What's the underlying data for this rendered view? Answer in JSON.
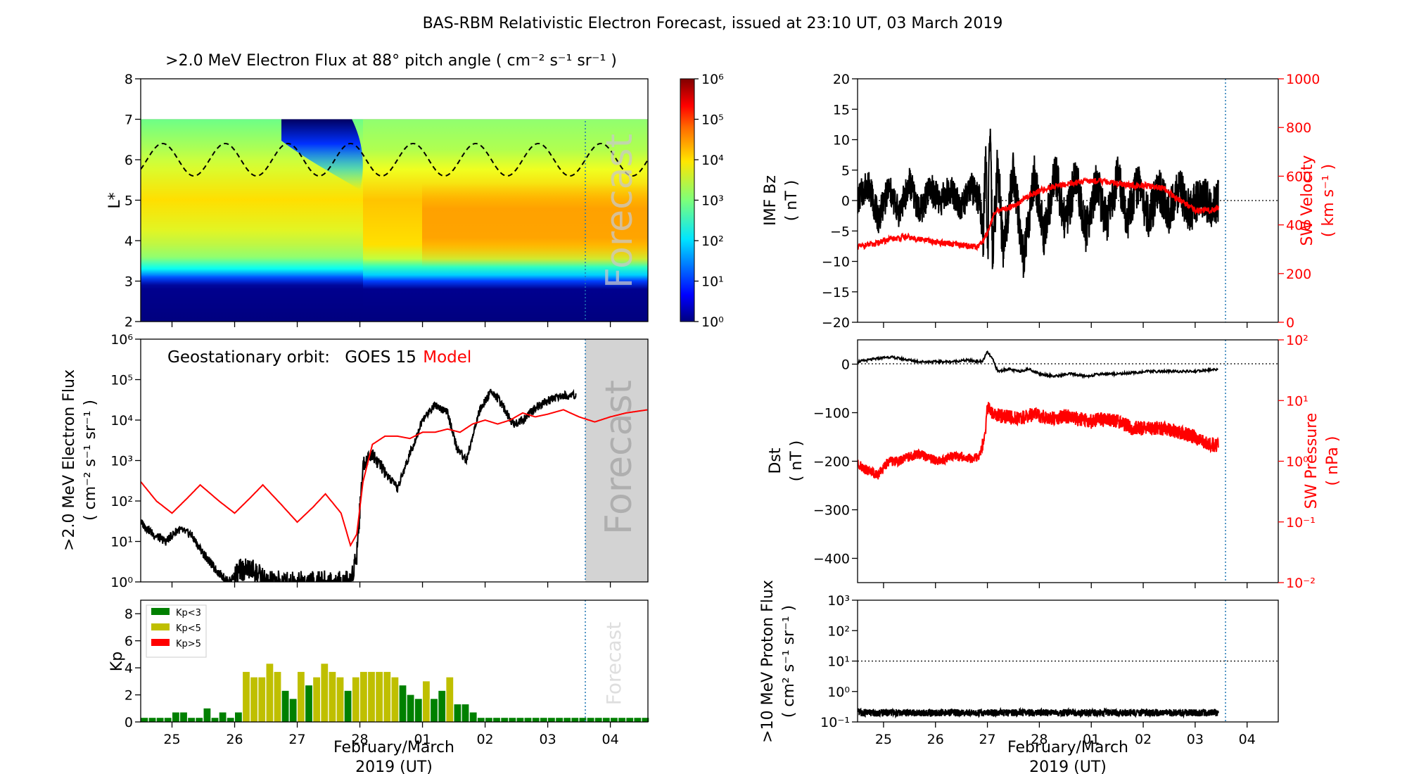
{
  "title": "BAS-RBM Relativistic Electron Forecast, issued at 23:10 UT, 03 March 2019",
  "chart_data": [
    {
      "id": "flux_spectrogram",
      "type": "heatmap",
      "title": ">2.0 MeV Electron Flux at 88° pitch angle ( cm⁻² s⁻¹ sr⁻¹ )",
      "ylabel": "L*",
      "ylim": [
        2,
        8
      ],
      "yticks": [
        "2",
        "3",
        "4",
        "5",
        "6",
        "7",
        "8"
      ],
      "xlim": [
        24.5,
        32.6
      ],
      "colorbar": {
        "scale": "log",
        "range": [
          1,
          1000000
        ],
        "ticks": [
          "10⁰",
          "10¹",
          "10²",
          "10³",
          "10⁴",
          "10⁵",
          "10⁶"
        ]
      },
      "overlay_text": "Forecast",
      "mlt_markers": [
        "M",
        "N",
        "M",
        "N",
        "M",
        "N",
        "M",
        "N",
        "M",
        "N",
        "M",
        "N",
        "M",
        "N"
      ],
      "geo_orbit_lstar": {
        "mean": 6.0,
        "amplitude": 0.4,
        "period_days": 1
      },
      "inner_belt_edge_lstar": 3.2,
      "outer_belt_core_lstar": [
        3.8,
        5.8
      ],
      "colors": {
        "deep": "#00007f",
        "high": "#ff8000",
        "shade": "#d3d3d3"
      }
    },
    {
      "id": "geo_flux",
      "type": "line",
      "ylabel": ">2.0 MeV Electron Flux ( cm⁻² s⁻¹ sr⁻¹ )",
      "yscale": "log",
      "ylim": [
        1,
        1000000
      ],
      "yticks": [
        "10⁰",
        "10¹",
        "10²",
        "10³",
        "10⁴",
        "10⁵",
        "10⁶"
      ],
      "legend_prefix": "Geostationary orbit:",
      "overlay_text": "Forecast",
      "series": [
        {
          "name": "GOES 15",
          "color": "#000000",
          "x": [
            24.5,
            24.7,
            24.9,
            25.1,
            25.3,
            25.5,
            25.7,
            25.9,
            26.1,
            26.3,
            26.5,
            26.7,
            26.9,
            27.1,
            27.3,
            27.5,
            27.7,
            27.85,
            27.95,
            28.05,
            28.2,
            28.4,
            28.6,
            28.8,
            29.0,
            29.2,
            29.4,
            29.55,
            29.7,
            29.9,
            30.1,
            30.3,
            30.45,
            30.6,
            30.8,
            31.0,
            31.2,
            31.4,
            31.45
          ],
          "y": [
            30,
            15,
            10,
            20,
            15,
            5,
            2,
            1,
            2,
            2,
            1,
            1,
            1,
            1,
            1,
            1,
            1,
            1,
            5,
            800,
            1500,
            500,
            200,
            1500,
            10000,
            25000,
            15000,
            2000,
            1000,
            15000,
            55000,
            20000,
            8000,
            10000,
            20000,
            30000,
            40000,
            40000,
            45000
          ]
        },
        {
          "name": "Model",
          "color": "#ff0000",
          "x": [
            24.5,
            24.75,
            25.0,
            25.25,
            25.45,
            25.75,
            26.0,
            26.25,
            26.45,
            26.75,
            27.0,
            27.25,
            27.45,
            27.7,
            27.85,
            27.95,
            28.05,
            28.2,
            28.4,
            28.6,
            28.8,
            29.0,
            29.2,
            29.4,
            29.6,
            29.8,
            30.0,
            30.2,
            30.4,
            30.6,
            30.8,
            31.0,
            31.25,
            31.5,
            31.75,
            32.0,
            32.25,
            32.6
          ],
          "y": [
            300,
            100,
            50,
            120,
            250,
            100,
            50,
            120,
            250,
            80,
            30,
            70,
            150,
            50,
            8,
            15,
            300,
            2500,
            4000,
            4000,
            3500,
            5000,
            5000,
            6000,
            5000,
            8000,
            10000,
            8000,
            10000,
            15000,
            12000,
            14000,
            18000,
            12000,
            9000,
            12000,
            15000,
            18000
          ]
        }
      ]
    },
    {
      "id": "kp",
      "type": "bar",
      "ylabel": "Kp",
      "ylim": [
        0,
        9
      ],
      "yticks": [
        "0",
        "2",
        "4",
        "6",
        "8"
      ],
      "xlabel": "February/March\n2019 (UT)",
      "xlim": [
        24.5,
        32.6
      ],
      "xtick_positions": [
        25,
        26,
        27,
        28,
        29,
        30,
        31,
        32
      ],
      "xticks": [
        "25",
        "26",
        "27",
        "28",
        "01",
        "02",
        "03",
        "04"
      ],
      "overlay_text": "Forecast",
      "legend": [
        {
          "label": "Kp<3",
          "color": "#008000"
        },
        {
          "label": "Kp<5",
          "color": "#bfbf00"
        },
        {
          "label": "Kp>5",
          "color": "#ff0000"
        }
      ],
      "bar_width_days": 0.11,
      "values": [
        0.3,
        0.3,
        0.3,
        0.3,
        0.7,
        0.7,
        0.3,
        0.3,
        1.0,
        0.3,
        0.7,
        0.3,
        0.7,
        3.7,
        3.3,
        3.3,
        4.3,
        3.7,
        2.3,
        1.7,
        3.7,
        2.7,
        3.3,
        4.3,
        3.7,
        3.3,
        2.3,
        3.3,
        3.7,
        3.7,
        3.7,
        3.7,
        3.3,
        2.7,
        2.0,
        1.7,
        3.0,
        1.7,
        2.3,
        3.3,
        1.3,
        1.3,
        0.7,
        0.3,
        0.3,
        0.3,
        0.3,
        0.3,
        0.3,
        0.3,
        0.3,
        0.3,
        0.3,
        0.3,
        0.3,
        0.3,
        0.3,
        0.3,
        0.3,
        0.3,
        0.3,
        0.3,
        0.3,
        0.3,
        0.3
      ]
    },
    {
      "id": "imf_sw",
      "type": "line",
      "ylabel": "IMF Bz ( nT )",
      "ylim": [
        -20,
        20
      ],
      "yticks": [
        "−20",
        "−15",
        "−10",
        "−5",
        "0",
        "5",
        "10",
        "15",
        "20"
      ],
      "y2label": "SW Velocity ( km s⁻¹ )",
      "y2lim": [
        0,
        1000
      ],
      "y2ticks": [
        "0",
        "200",
        "400",
        "600",
        "800",
        "1000"
      ],
      "series": [
        {
          "name": "IMF Bz",
          "color": "#000000",
          "x": [
            24.5,
            24.7,
            24.9,
            25.1,
            25.3,
            25.5,
            25.7,
            25.9,
            26.1,
            26.3,
            26.5,
            26.7,
            26.85,
            26.92,
            26.97,
            27.0,
            27.05,
            27.1,
            27.2,
            27.3,
            27.5,
            27.7,
            27.9,
            28.1,
            28.3,
            28.5,
            28.7,
            28.9,
            29.1,
            29.3,
            29.5,
            29.7,
            29.9,
            30.1,
            30.3,
            30.5,
            30.7,
            30.9,
            31.1,
            31.3,
            31.45
          ],
          "y": [
            0,
            3,
            -3,
            2,
            -2,
            3,
            -2,
            2,
            0,
            2,
            -1,
            2,
            0,
            -6,
            9,
            -11,
            12,
            -9,
            6,
            -8,
            5,
            -10,
            4,
            -6,
            5,
            -4,
            4,
            -5,
            3,
            -4,
            4,
            -3,
            3,
            -3,
            2,
            -2,
            2,
            -2,
            1,
            -1,
            0
          ]
        },
        {
          "name": "SW Velocity",
          "color": "#ff0000",
          "x": [
            24.5,
            24.8,
            25.1,
            25.4,
            25.7,
            26.0,
            26.3,
            26.6,
            26.8,
            26.9,
            27.0,
            27.1,
            27.2,
            27.4,
            27.6,
            27.8,
            28.0,
            28.3,
            28.6,
            28.9,
            29.2,
            29.5,
            29.8,
            30.1,
            30.4,
            30.7,
            31.0,
            31.3,
            31.45
          ],
          "y": [
            310,
            320,
            340,
            350,
            340,
            330,
            320,
            315,
            310,
            330,
            370,
            430,
            460,
            470,
            490,
            520,
            540,
            560,
            570,
            580,
            580,
            570,
            560,
            560,
            550,
            500,
            460,
            460,
            470
          ]
        }
      ]
    },
    {
      "id": "dst_pressure",
      "type": "line",
      "ylabel": "Dst ( nT )",
      "ylim": [
        -450,
        50
      ],
      "yticks": [
        "−400",
        "−300",
        "−200",
        "−100",
        "0"
      ],
      "y2label": "SW Pressure ( nPa )",
      "y2scale": "log",
      "y2lim": [
        0.01,
        100
      ],
      "y2ticks": [
        "10⁻²",
        "10⁻¹",
        "10⁰",
        "10¹",
        "10²"
      ],
      "series": [
        {
          "name": "Dst",
          "color": "#000000",
          "x": [
            24.5,
            24.8,
            25.1,
            25.4,
            25.7,
            26.0,
            26.3,
            26.6,
            26.9,
            27.0,
            27.1,
            27.2,
            27.4,
            27.6,
            27.8,
            28.0,
            28.3,
            28.6,
            28.9,
            29.2,
            29.5,
            29.8,
            30.1,
            30.4,
            30.7,
            31.0,
            31.3,
            31.45
          ],
          "y": [
            5,
            10,
            15,
            10,
            5,
            5,
            5,
            8,
            5,
            25,
            10,
            -15,
            -10,
            -15,
            -10,
            -20,
            -25,
            -20,
            -25,
            -20,
            -20,
            -18,
            -15,
            -15,
            -15,
            -15,
            -12,
            -10
          ]
        },
        {
          "name": "SW Pressure",
          "color": "#ff0000",
          "x": [
            24.5,
            24.7,
            24.9,
            25.1,
            25.3,
            25.5,
            25.7,
            25.9,
            26.1,
            26.3,
            26.5,
            26.7,
            26.85,
            26.95,
            27.0,
            27.1,
            27.3,
            27.6,
            27.9,
            28.2,
            28.5,
            28.8,
            29.0,
            29.2,
            29.5,
            29.8,
            30.1,
            30.4,
            30.7,
            31.0,
            31.2,
            31.45
          ],
          "y": [
            0.9,
            0.7,
            0.6,
            1.0,
            1.0,
            1.2,
            1.3,
            1.1,
            1.0,
            1.2,
            1.2,
            1.1,
            1.2,
            2.5,
            8,
            6,
            5.5,
            5,
            6,
            5,
            5.5,
            5,
            4.5,
            5,
            4.5,
            3.5,
            3.5,
            3.5,
            3.0,
            2.5,
            2.0,
            1.8
          ]
        }
      ]
    },
    {
      "id": "proton_flux",
      "type": "line",
      "ylabel": ">10 MeV Proton Flux ( cm² s⁻¹ sr⁻¹ )",
      "yscale": "log",
      "ylim": [
        0.1,
        1000
      ],
      "yticks": [
        "10⁻¹",
        "10⁰",
        "10¹",
        "10²",
        "10³"
      ],
      "xlabel": "February/March\n2019 (UT)",
      "xlim": [
        24.5,
        32.6
      ],
      "xtick_positions": [
        25,
        26,
        27,
        28,
        29,
        30,
        31,
        32
      ],
      "xticks": [
        "25",
        "26",
        "27",
        "28",
        "01",
        "02",
        "03",
        "04"
      ],
      "threshold": 10,
      "series": [
        {
          "name": ">10 MeV protons",
          "color": "#000000",
          "x": [
            24.5,
            31.45
          ],
          "y": [
            0.2,
            0.2
          ]
        }
      ]
    }
  ]
}
